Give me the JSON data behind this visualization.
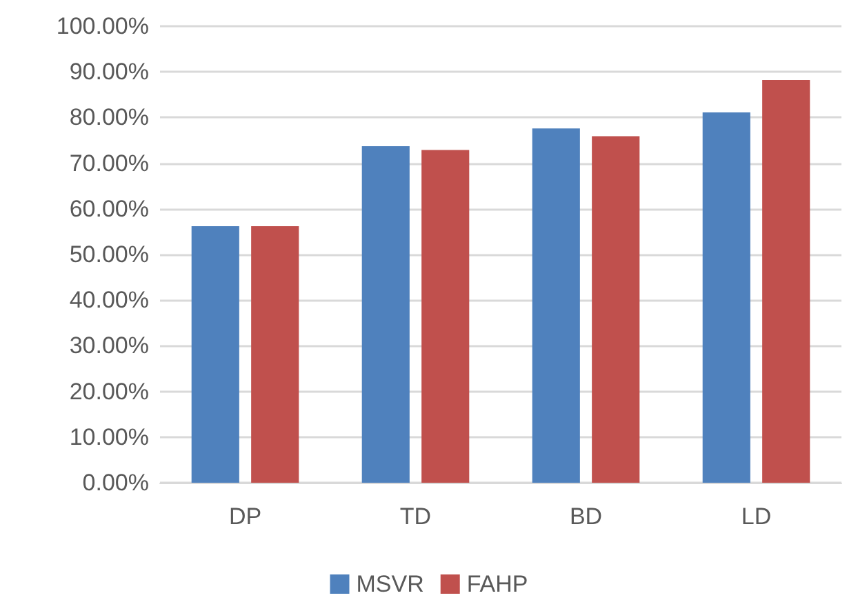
{
  "chart_data": {
    "type": "bar",
    "categories": [
      "DP",
      "TD",
      "BD",
      "LD"
    ],
    "series": [
      {
        "name": "MSVR",
        "color": "#4f81bd",
        "values": [
          56.2,
          73.7,
          77.6,
          81.1
        ]
      },
      {
        "name": "FAHP",
        "color": "#c0504d",
        "values": [
          56.2,
          72.9,
          75.9,
          88.2
        ]
      }
    ],
    "ylim": [
      0,
      100
    ],
    "yticks": [
      {
        "value": 0,
        "label": "0.00%"
      },
      {
        "value": 10,
        "label": "10.00%"
      },
      {
        "value": 20,
        "label": "20.00%"
      },
      {
        "value": 30,
        "label": "30.00%"
      },
      {
        "value": 40,
        "label": "40.00%"
      },
      {
        "value": 50,
        "label": "50.00%"
      },
      {
        "value": 60,
        "label": "60.00%"
      },
      {
        "value": 70,
        "label": "70.00%"
      },
      {
        "value": 80,
        "label": "80.00%"
      },
      {
        "value": 90,
        "label": "90.00%"
      },
      {
        "value": 100,
        "label": "100.00%"
      }
    ],
    "grid": "y",
    "legend": "bottom"
  }
}
